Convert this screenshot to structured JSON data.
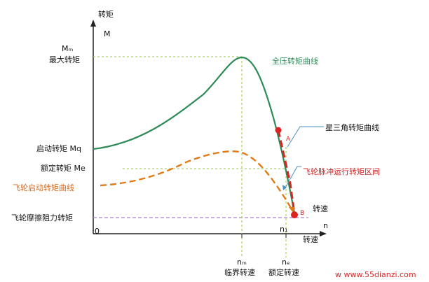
{
  "axes": {
    "y_title": "转矩",
    "y_symbol": "M",
    "x_title": "转速",
    "x_symbol": "n",
    "x_under_symbol": "转速",
    "origin": "0"
  },
  "y_labels": {
    "mm_symbol": "Mₘ",
    "max_torque": "最大转矩",
    "start_torque": "启动转矩 Mq",
    "rated_torque": "额定转矩 Me",
    "flywheel_start": "飞轮启动转矩曲线",
    "friction": "飞轮摩擦阻力转矩"
  },
  "x_labels": {
    "nm_symbol": "nₘ",
    "critical_speed": "临界转速",
    "ne_symbol": "nₑ",
    "rated_speed": "额定转速",
    "n1_symbol": "n₁"
  },
  "curve_labels": {
    "full_voltage": "全压转矩曲线",
    "star_delta": "星三角转矩曲线",
    "pulse_region": "飞轮脉冲运行转矩区间"
  },
  "markers": {
    "a": "A",
    "b": "B"
  },
  "watermark": "w  www.55dianzi.com",
  "colors": {
    "full_voltage_curve": "#2e8b57",
    "flywheel_curve": "#e07b1a",
    "pulse_segment": "#dd2222",
    "guide_green": "#9acd32",
    "guide_purple": "#b07fd0",
    "axis": "#222222"
  }
}
